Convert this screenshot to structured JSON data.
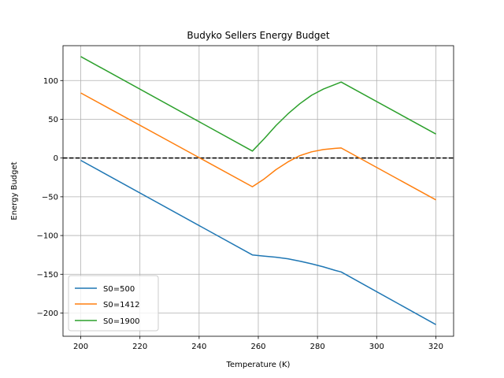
{
  "chart_data": {
    "type": "line",
    "title": "Budyko Sellers Energy Budget",
    "xlabel": "Temperature (K)",
    "ylabel": "Energy Budget",
    "xlim": [
      194,
      326
    ],
    "ylim": [
      -230,
      145
    ],
    "xticks": [
      200,
      220,
      240,
      260,
      280,
      300,
      320
    ],
    "yticks": [
      -200,
      -150,
      -100,
      -50,
      0,
      50,
      100
    ],
    "xtick_labels": [
      "200",
      "220",
      "240",
      "260",
      "280",
      "300",
      "320"
    ],
    "ytick_labels": [
      "−200",
      "−150",
      "−100",
      "−50",
      "0",
      "50",
      "100"
    ],
    "grid": true,
    "legend_position": "lower-left",
    "zero_line": {
      "y": 0,
      "style": "dashed",
      "color": "#000000"
    },
    "series": [
      {
        "name": "S0=500",
        "color": "#1f77b4",
        "x": [
          200,
          258,
          262,
          266,
          270,
          274,
          278,
          282,
          286,
          288,
          320
        ],
        "y": [
          -3,
          -125,
          -126.5,
          -128,
          -130,
          -133,
          -136.5,
          -140.5,
          -145,
          -147,
          -215
        ]
      },
      {
        "name": "S0=1412",
        "color": "#ff7f0e",
        "x": [
          200,
          258,
          262,
          266,
          270,
          274,
          278,
          282,
          286,
          288,
          320
        ],
        "y": [
          84,
          -37,
          -27,
          -15,
          -5,
          3,
          8,
          11,
          12.5,
          13,
          -54
        ]
      },
      {
        "name": "S0=1900",
        "color": "#2ca02c",
        "x": [
          200,
          258,
          262,
          266,
          270,
          274,
          278,
          282,
          286,
          288,
          320
        ],
        "y": [
          131,
          9,
          25,
          42,
          57,
          70,
          81,
          89,
          95,
          98,
          31
        ]
      }
    ]
  }
}
